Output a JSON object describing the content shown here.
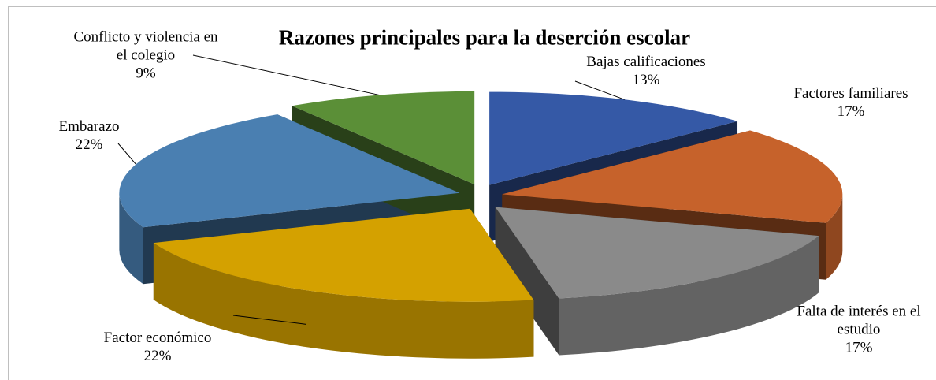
{
  "chart_data": {
    "type": "pie3d",
    "title": "Razones principales para la deserción escolar",
    "categories": [
      "Bajas calificaciones",
      "Factores familiares",
      "Falta de interés en el estudio",
      "Factor económico",
      "Embarazo",
      "Conflicto y violencia en el colegio"
    ],
    "values": [
      13,
      17,
      17,
      22,
      22,
      9
    ],
    "value_labels": [
      "13%",
      "17%",
      "17%",
      "22%",
      "22%",
      "9%"
    ],
    "colors": [
      "#3559a6",
      "#c6622b",
      "#8a8a8a",
      "#d4a100",
      "#4a7fb1",
      "#5b8f37"
    ]
  }
}
